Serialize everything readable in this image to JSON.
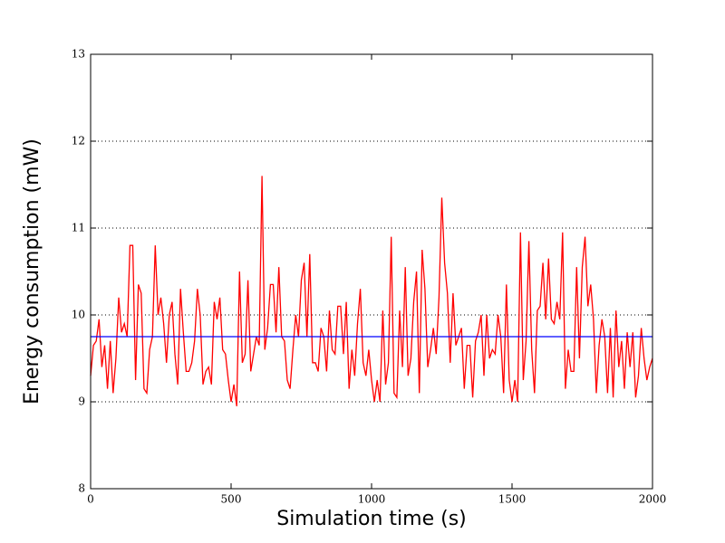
{
  "chart_data": {
    "type": "line",
    "xlabel": "Simulation time (s)",
    "ylabel": "Energy consumption (mW)",
    "xlim": [
      0,
      2000
    ],
    "xticks": [
      0,
      500,
      1000,
      1500,
      2000
    ],
    "ylim": [
      8,
      13
    ],
    "yticks": [
      8,
      9,
      10,
      11,
      12,
      13
    ],
    "grid": true,
    "series": [
      {
        "color": "#ff0000",
        "x": [
          0,
          10,
          20,
          30,
          40,
          50,
          60,
          70,
          80,
          90,
          100,
          110,
          120,
          130,
          140,
          150,
          160,
          170,
          180,
          190,
          200,
          210,
          220,
          230,
          240,
          250,
          260,
          270,
          280,
          290,
          300,
          310,
          320,
          330,
          340,
          350,
          360,
          370,
          380,
          390,
          400,
          410,
          420,
          430,
          440,
          450,
          460,
          470,
          480,
          490,
          500,
          510,
          520,
          530,
          540,
          550,
          560,
          570,
          580,
          590,
          600,
          610,
          620,
          630,
          640,
          650,
          660,
          670,
          680,
          690,
          700,
          710,
          720,
          730,
          740,
          750,
          760,
          770,
          780,
          790,
          800,
          810,
          820,
          830,
          840,
          850,
          860,
          870,
          880,
          890,
          900,
          910,
          920,
          930,
          940,
          950,
          960,
          970,
          980,
          990,
          1000,
          1010,
          1020,
          1030,
          1040,
          1050,
          1060,
          1070,
          1080,
          1090,
          1100,
          1110,
          1120,
          1130,
          1140,
          1150,
          1160,
          1170,
          1180,
          1190,
          1200,
          1210,
          1220,
          1230,
          1240,
          1250,
          1260,
          1270,
          1280,
          1290,
          1300,
          1310,
          1320,
          1330,
          1340,
          1350,
          1360,
          1370,
          1380,
          1390,
          1400,
          1410,
          1420,
          1430,
          1440,
          1450,
          1460,
          1470,
          1480,
          1490,
          1500,
          1510,
          1520,
          1530,
          1540,
          1550,
          1560,
          1570,
          1580,
          1590,
          1600,
          1610,
          1620,
          1630,
          1640,
          1650,
          1660,
          1670,
          1680,
          1690,
          1700,
          1710,
          1720,
          1730,
          1740,
          1750,
          1760,
          1770,
          1780,
          1790,
          1800,
          1810,
          1820,
          1830,
          1840,
          1850,
          1860,
          1870,
          1880,
          1890,
          1900,
          1910,
          1920,
          1930,
          1940,
          1950,
          1960,
          1970,
          1980,
          1990,
          2000
        ],
        "values": [
          9.3,
          9.65,
          9.7,
          9.95,
          9.4,
          9.65,
          9.15,
          9.7,
          9.1,
          9.5,
          10.2,
          9.8,
          9.9,
          9.75,
          10.8,
          10.8,
          9.25,
          10.35,
          10.25,
          9.15,
          9.1,
          9.6,
          9.75,
          10.8,
          10.0,
          10.2,
          9.9,
          9.45,
          10.0,
          10.15,
          9.55,
          9.2,
          10.3,
          9.8,
          9.35,
          9.35,
          9.45,
          9.7,
          10.3,
          10.0,
          9.2,
          9.35,
          9.4,
          9.2,
          10.15,
          9.95,
          10.2,
          9.6,
          9.55,
          9.25,
          9.0,
          9.2,
          8.95,
          10.5,
          9.45,
          9.55,
          10.4,
          9.35,
          9.55,
          9.75,
          9.65,
          11.6,
          9.6,
          9.85,
          10.35,
          10.35,
          9.8,
          10.55,
          9.75,
          9.7,
          9.25,
          9.15,
          9.6,
          10.0,
          9.75,
          10.4,
          10.6,
          9.75,
          10.7,
          9.45,
          9.45,
          9.35,
          9.85,
          9.75,
          9.35,
          10.05,
          9.6,
          9.55,
          10.1,
          10.1,
          9.55,
          10.15,
          9.15,
          9.6,
          9.3,
          9.9,
          10.3,
          9.45,
          9.3,
          9.6,
          9.25,
          9.0,
          9.25,
          9.0,
          10.05,
          9.2,
          9.45,
          10.9,
          9.1,
          9.05,
          10.05,
          9.4,
          10.55,
          9.3,
          9.5,
          10.15,
          10.5,
          9.1,
          10.75,
          10.3,
          9.4,
          9.6,
          9.85,
          9.55,
          10.2,
          11.35,
          10.6,
          10.25,
          9.45,
          10.25,
          9.65,
          9.75,
          9.85,
          9.15,
          9.65,
          9.65,
          9.05,
          9.7,
          9.8,
          10.0,
          9.3,
          10.0,
          9.5,
          9.6,
          9.55,
          10.0,
          9.75,
          9.1,
          10.35,
          9.25,
          9.0,
          9.25,
          9.0,
          10.95,
          9.25,
          9.7,
          10.85,
          9.6,
          9.1,
          10.05,
          10.1,
          10.6,
          9.95,
          10.65,
          9.95,
          9.9,
          10.15,
          9.95,
          10.95,
          9.15,
          9.6,
          9.35,
          9.35,
          10.55,
          9.5,
          10.55,
          10.9,
          10.1,
          10.35,
          9.95,
          9.1,
          9.65,
          9.95,
          9.75,
          9.1,
          9.85,
          9.05,
          10.05,
          9.4,
          9.7,
          9.15,
          9.8,
          9.4,
          9.8,
          9.05,
          9.3,
          9.85,
          9.5,
          9.25,
          9.4,
          9.5
        ]
      },
      {
        "color": "#0000ff",
        "x": [
          0,
          2000
        ],
        "values": [
          9.75,
          9.75
        ]
      }
    ]
  }
}
